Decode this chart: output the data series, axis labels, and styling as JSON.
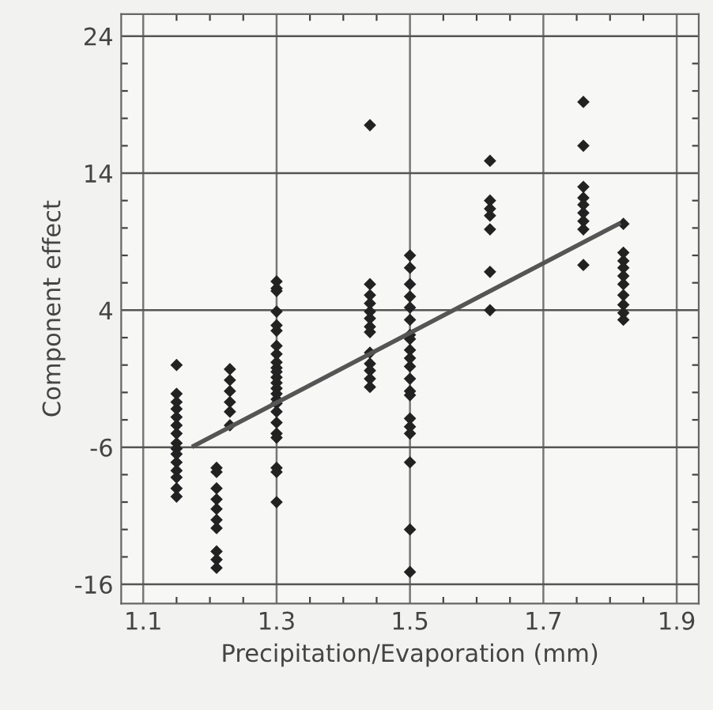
{
  "chart_data": {
    "type": "scatter",
    "xlabel": "Precipitation/Evaporation (mm)",
    "ylabel": "Component effect",
    "xlim": [
      1.067,
      1.933
    ],
    "ylim": [
      -17.4,
      25.6
    ],
    "xticks": [
      1.1,
      {
        "value": 1.15,
        "label": null
      },
      {
        "value": 1.2,
        "label": null
      },
      {
        "value": 1.25,
        "label": null
      },
      1.3,
      {
        "value": 1.35,
        "label": null
      },
      {
        "value": 1.4,
        "label": null
      },
      {
        "value": 1.45,
        "label": null
      },
      1.5,
      {
        "value": 1.55,
        "label": null
      },
      {
        "value": 1.6,
        "label": null
      },
      {
        "value": 1.65,
        "label": null
      },
      1.7,
      {
        "value": 1.75,
        "label": null
      },
      {
        "value": 1.8,
        "label": null
      },
      {
        "value": 1.85,
        "label": null
      },
      1.9
    ],
    "yticks": [
      -16,
      {
        "value": -14,
        "label": null
      },
      {
        "value": -12,
        "label": null
      },
      {
        "value": -10,
        "label": null
      },
      {
        "value": -8,
        "label": null
      },
      -6,
      {
        "value": -4,
        "label": null
      },
      {
        "value": -2,
        "label": null
      },
      {
        "value": 0,
        "label": null
      },
      {
        "value": 2,
        "label": null
      },
      4,
      {
        "value": 6,
        "label": null
      },
      {
        "value": 8,
        "label": null
      },
      {
        "value": 10,
        "label": null
      },
      {
        "value": 12,
        "label": null
      },
      14,
      {
        "value": 16,
        "label": null
      },
      {
        "value": 18,
        "label": null
      },
      {
        "value": 20,
        "label": null
      },
      {
        "value": 22,
        "label": null
      },
      24
    ],
    "grid": true,
    "marker": "diamond",
    "series": [
      {
        "color": "#222222",
        "x": [
          1.15,
          1.15,
          1.15,
          1.15,
          1.15,
          1.15,
          1.15,
          1.15,
          1.15,
          1.15,
          1.15,
          1.15,
          1.15,
          1.15,
          1.15,
          1.23,
          1.23,
          1.23,
          1.23,
          1.23,
          1.23,
          1.21,
          1.21,
          1.21,
          1.21,
          1.21,
          1.21,
          1.21,
          1.21,
          1.21,
          1.21,
          1.3,
          1.3,
          1.3,
          1.3,
          1.3,
          1.3,
          1.3,
          1.3,
          1.3,
          1.3,
          1.3,
          1.3,
          1.3,
          1.3,
          1.3,
          1.3,
          1.3,
          1.3,
          1.3,
          1.3,
          1.3,
          1.3,
          1.3,
          1.3,
          1.44,
          1.44,
          1.44,
          1.44,
          1.44,
          1.44,
          1.44,
          1.44,
          1.44,
          1.44,
          1.44,
          1.44,
          1.44,
          1.5,
          1.5,
          1.5,
          1.5,
          1.5,
          1.5,
          1.5,
          1.5,
          1.5,
          1.5,
          1.5,
          1.5,
          1.5,
          1.5,
          1.5,
          1.5,
          1.5,
          1.5,
          1.5,
          1.5,
          1.62,
          1.62,
          1.62,
          1.62,
          1.62,
          1.62,
          1.62,
          1.76,
          1.76,
          1.76,
          1.76,
          1.76,
          1.76,
          1.76,
          1.76,
          1.76,
          1.82,
          1.82,
          1.82,
          1.82,
          1.82,
          1.82,
          1.82,
          1.82,
          1.82,
          1.82
        ],
        "values": [
          0.0,
          -2.1,
          -2.7,
          -3.2,
          -3.8,
          -4.4,
          -5.0,
          -5.7,
          -6.1,
          -6.5,
          -7.1,
          -7.7,
          -8.2,
          -9.0,
          -9.6,
          -0.3,
          -1.1,
          -1.9,
          -2.7,
          -3.4,
          -4.4,
          -7.5,
          -7.8,
          -9.0,
          -9.8,
          -10.5,
          -11.3,
          -11.9,
          -13.6,
          -14.2,
          -14.8,
          6.1,
          5.6,
          5.4,
          3.9,
          2.9,
          2.5,
          1.4,
          0.8,
          0.2,
          -0.2,
          -0.5,
          -0.9,
          -1.3,
          -1.7,
          -2.1,
          -2.5,
          -2.8,
          -3.4,
          -4.2,
          -5.0,
          -5.3,
          -7.5,
          -7.8,
          -10.0,
          17.5,
          5.9,
          5.1,
          4.5,
          3.9,
          3.4,
          2.8,
          2.4,
          0.9,
          0.1,
          -0.4,
          -1.0,
          -1.6,
          8.0,
          7.1,
          5.9,
          5.0,
          4.2,
          3.3,
          2.2,
          1.9,
          1.1,
          0.5,
          -0.1,
          -1.0,
          -1.9,
          -2.2,
          -3.9,
          -4.5,
          -5.0,
          -7.1,
          -12.0,
          -15.1,
          14.9,
          12.0,
          11.4,
          10.9,
          9.9,
          6.8,
          4.0,
          19.2,
          16.0,
          13.0,
          12.2,
          11.7,
          11.1,
          10.5,
          9.9,
          7.3,
          10.3,
          8.2,
          7.6,
          7.1,
          6.5,
          5.9,
          5.1,
          4.4,
          3.8,
          3.3
        ]
      },
      {
        "type": "line",
        "color": "#555555",
        "x": [
          1.176,
          1.813
        ],
        "values": [
          -5.9,
          10.3
        ],
        "marker": "none"
      }
    ]
  }
}
